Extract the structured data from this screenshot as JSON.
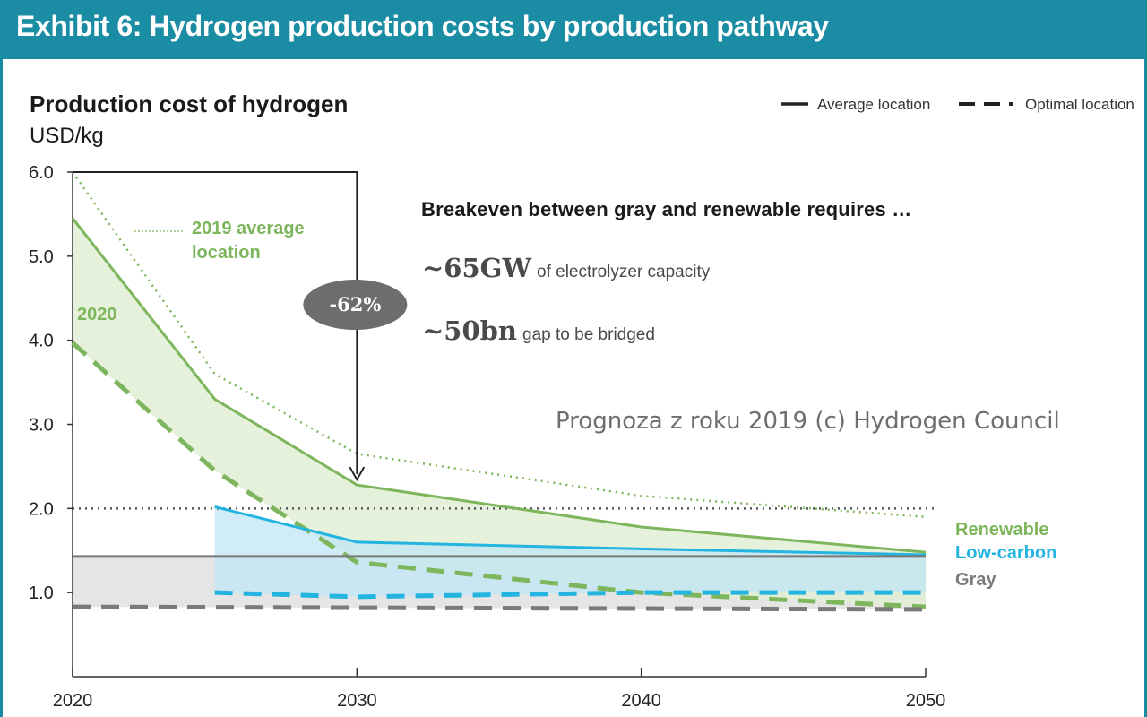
{
  "banner": {
    "title": "Exhibit 6: Hydrogen production costs by production pathway"
  },
  "legend": {
    "solid_label": "Average location",
    "dashed_label": "Optimal location"
  },
  "annotations": {
    "avg2019": "2019 average",
    "avg2019_line2": "location",
    "y2020": "2020",
    "reduction": "-62%"
  },
  "note": {
    "headline": "Breakeven between gray and renewable requires …",
    "item1_big": "~65GW",
    "item1_small": "of electrolyzer capacity",
    "item2_big": "~50bn",
    "item2_small": "gap to be bridged"
  },
  "watermark": "Prognoza z roku 2019 (c) Hydrogen Council",
  "colors": {
    "banner": "#1a8ca3",
    "renewable": "#7db65c",
    "renewable_fill": "#e2efd6",
    "low_carbon": "#23b4e0",
    "low_carbon_fill": "#bfe6f5",
    "gray": "#7a7a7a",
    "gray_fill": "#e5e5e5",
    "bubble": "#6d6d6d"
  },
  "chart_data": {
    "type": "area",
    "title": "Production cost of hydrogen",
    "ylabel": "USD/kg",
    "xlabel": "",
    "x_ticks": [
      "2020",
      "2030",
      "2040",
      "2050"
    ],
    "y_ticks": [
      "6.0",
      "5.0",
      "4.0",
      "3.0",
      "2.0",
      "1.0"
    ],
    "xlim": [
      2020,
      2050
    ],
    "ylim": [
      0,
      6
    ],
    "reference_line": {
      "y": 2.0,
      "style": "dotted"
    },
    "series": [
      {
        "name": "2019 average location",
        "style": "dotted",
        "color": "#7db65c",
        "x": [
          2020,
          2025,
          2030,
          2040,
          2050
        ],
        "y": [
          6.0,
          3.6,
          2.65,
          2.15,
          1.9
        ]
      },
      {
        "name": "Renewable",
        "pathway": "renewable",
        "location": "average",
        "style": "solid",
        "color": "#7db65c",
        "x": [
          2020,
          2025,
          2030,
          2040,
          2050
        ],
        "y": [
          5.45,
          3.3,
          2.28,
          1.78,
          1.48
        ]
      },
      {
        "pathway": "renewable",
        "location": "optimal",
        "style": "dashed",
        "color": "#7db65c",
        "x": [
          2020,
          2025,
          2030,
          2040,
          2050
        ],
        "y": [
          3.97,
          2.45,
          1.36,
          1.0,
          0.83
        ]
      },
      {
        "name": "Low-carbon",
        "pathway": "low-carbon",
        "location": "average",
        "style": "solid",
        "color": "#23b4e0",
        "x": [
          2025,
          2030,
          2040,
          2050
        ],
        "y": [
          2.02,
          1.6,
          1.52,
          1.45
        ]
      },
      {
        "pathway": "low-carbon",
        "location": "optimal",
        "style": "dashed",
        "color": "#23b4e0",
        "x": [
          2025,
          2030,
          2040,
          2050
        ],
        "y": [
          1.0,
          0.95,
          1.0,
          1.0
        ]
      },
      {
        "name": "Gray",
        "pathway": "gray",
        "location": "average",
        "style": "solid",
        "color": "#7a7a7a",
        "x": [
          2020,
          2050
        ],
        "y": [
          1.43,
          1.43
        ]
      },
      {
        "pathway": "gray",
        "location": "optimal",
        "style": "dashed",
        "color": "#7a7a7a",
        "x": [
          2020,
          2050
        ],
        "y": [
          0.83,
          0.8
        ]
      }
    ],
    "reduction_arrow": {
      "from": [
        2020,
        6.0
      ],
      "to": [
        2030,
        2.28
      ],
      "label": "-62%"
    },
    "legend_placement": "top-right",
    "grid": false
  }
}
